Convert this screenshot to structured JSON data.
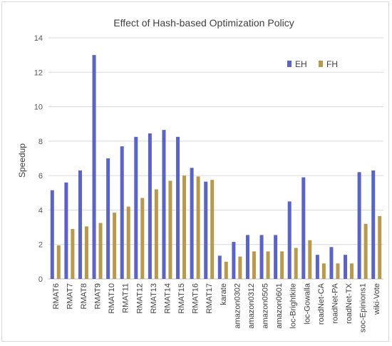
{
  "chart_data": {
    "type": "bar",
    "title": "Effect of Hash-based Optimization Policy",
    "xlabel": "",
    "ylabel": "Speedup",
    "ylim": [
      0,
      14
    ],
    "yticks": [
      0,
      2,
      4,
      6,
      8,
      10,
      12,
      14
    ],
    "grid": true,
    "legend_position": "top-right",
    "categories": [
      "RMAT6",
      "RMAT7",
      "RMAT8",
      "RMAT9",
      "RMAT10",
      "RMAT11",
      "RMAT12",
      "RMAT13",
      "RMAT14",
      "RMAT15",
      "RMAT16",
      "RMAT17",
      "karate",
      "amazon0302",
      "amazon0312",
      "amazon0505",
      "amazon0601",
      "loc-Brightkite",
      "loc-Gowalla",
      "roadNet-CA",
      "roadNet-PA",
      "roadNet-TX",
      "soc-Epinions1",
      "wiki-Vote"
    ],
    "series": [
      {
        "name": "EH",
        "color": "#5a63c9",
        "values": [
          5.15,
          5.6,
          6.3,
          13.0,
          7.0,
          7.7,
          8.25,
          8.45,
          8.65,
          8.25,
          6.45,
          5.65,
          1.35,
          2.15,
          2.55,
          2.55,
          2.55,
          4.5,
          5.9,
          1.4,
          1.85,
          1.4,
          6.2,
          6.3
        ]
      },
      {
        "name": "FH",
        "color": "#b89a4a",
        "values": [
          1.95,
          2.9,
          3.05,
          3.25,
          3.85,
          4.2,
          4.7,
          5.2,
          5.7,
          6.0,
          5.95,
          5.75,
          1.0,
          1.3,
          1.6,
          1.6,
          1.6,
          1.8,
          2.25,
          0.9,
          0.9,
          0.9,
          3.2,
          3.65
        ]
      }
    ]
  }
}
